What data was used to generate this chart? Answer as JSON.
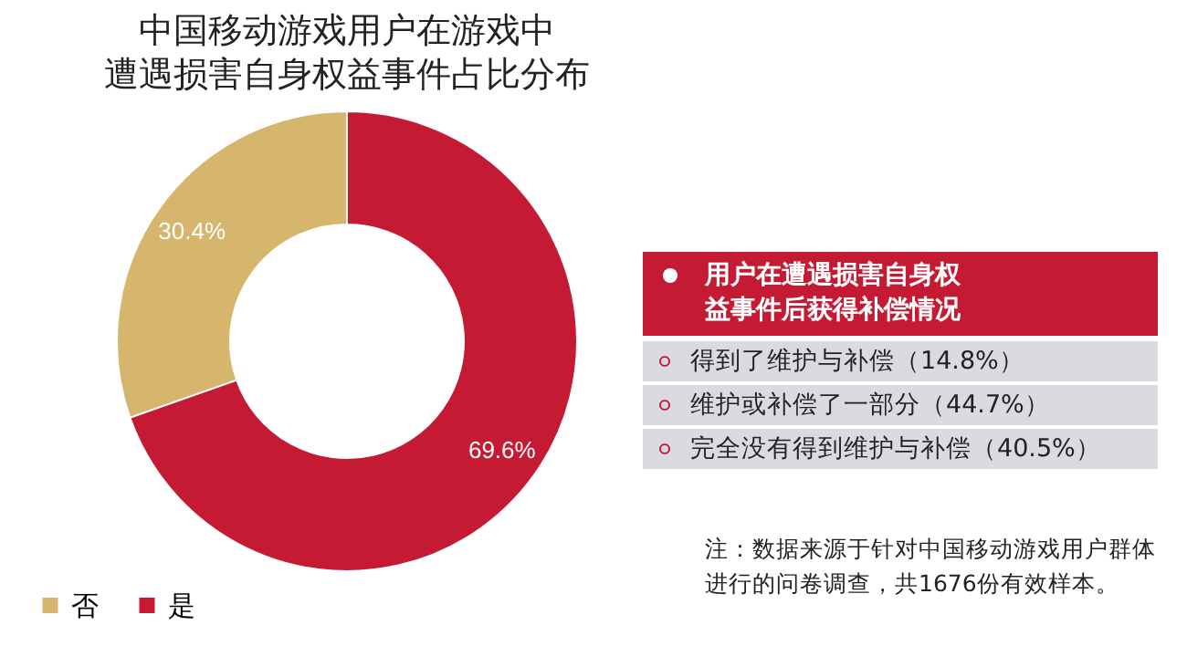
{
  "chart_data": [
    {
      "type": "donut",
      "title": "中国移动游戏用户在游戏中遭遇损害自身权益事件占比分布",
      "categories": [
        "否",
        "是"
      ],
      "values": [
        30.4,
        69.6
      ],
      "colors": [
        "#d6b56c",
        "#c41a33"
      ],
      "value_labels": [
        "30.4%",
        "69.6%"
      ],
      "legend": "bottom",
      "annotations": [
        "注：数据来源于针对中国移动游戏用户群体进行的问卷调查，共1676份有效样本。"
      ]
    },
    {
      "type": "other",
      "title": "用户在遭遇损害自身权益事件后获得补偿情况",
      "annotations": [
        "得到了维护与补偿（14.8%）",
        "维护或补偿了一部分（44.7%）",
        "完全没有得到维护与补偿（40.5%）"
      ]
    }
  ]
}
